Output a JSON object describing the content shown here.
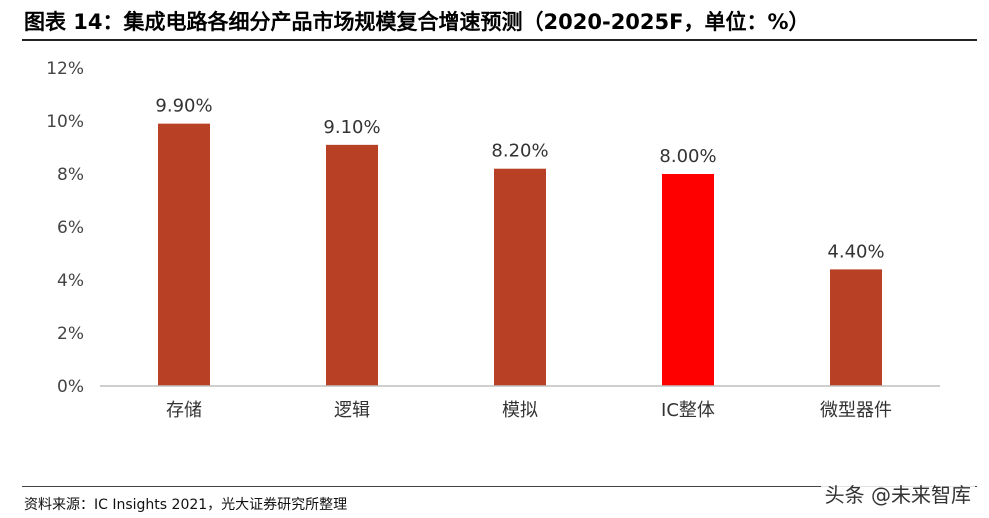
{
  "title": "图表 14：集成电路各细分产品市场规模复合增速预测（2020-2025F，单位：%）",
  "source": "资料来源：IC Insights 2021，光大证券研究所整理",
  "watermark": "头条 @未来智库",
  "chart_data": {
    "type": "bar",
    "categories": [
      "存储",
      "逻辑",
      "模拟",
      "IC整体",
      "微型器件"
    ],
    "values": [
      9.9,
      9.1,
      8.2,
      8.0,
      4.4
    ],
    "data_labels": [
      "9.90%",
      "9.10%",
      "8.20%",
      "8.00%",
      "4.40%"
    ],
    "ylim": [
      0,
      12
    ],
    "yticks": [
      0,
      2,
      4,
      6,
      8,
      10,
      12
    ],
    "ytick_labels": [
      "0%",
      "2%",
      "4%",
      "6%",
      "8%",
      "10%",
      "12%"
    ],
    "colors": [
      "#B84024",
      "#B84024",
      "#B84024",
      "#FF0000",
      "#B84024"
    ],
    "grid": false,
    "xlabel": "",
    "ylabel": ""
  }
}
